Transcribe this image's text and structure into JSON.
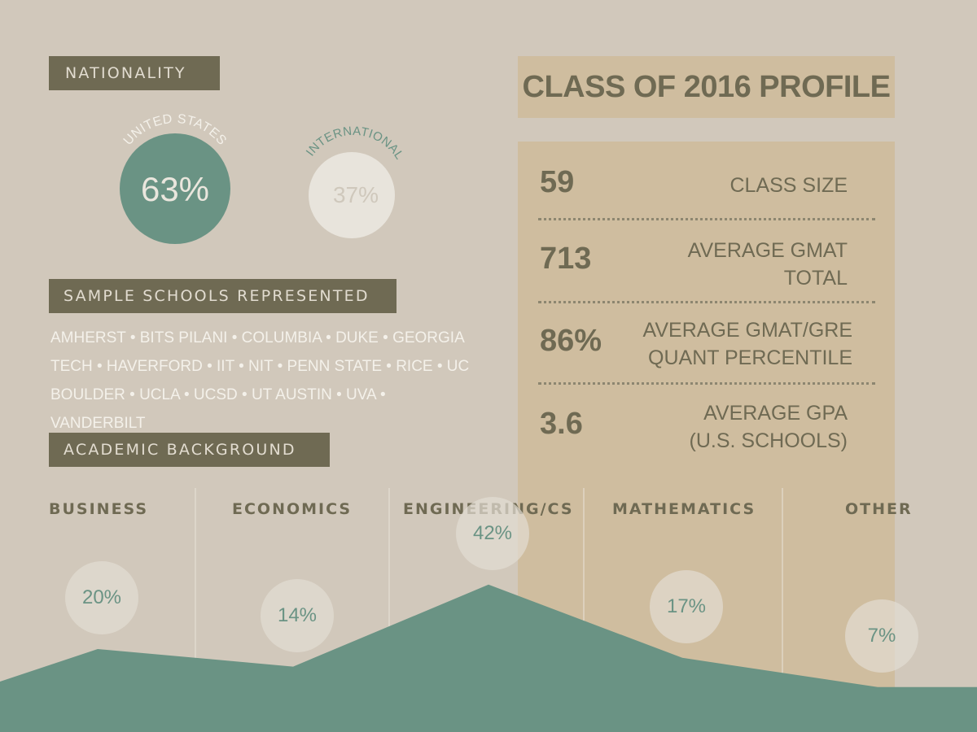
{
  "headers": {
    "nationality": "NATIONALITY",
    "schools": "SAMPLE SCHOOLS REPRESENTED",
    "academic": "ACADEMIC BACKGROUND"
  },
  "nationality": {
    "us": {
      "label": "UNITED STATES",
      "value": "63%"
    },
    "intl": {
      "label": "INTERNATIONAL",
      "value": "37%"
    }
  },
  "schools_text": "AMHERST • BITS PILANI • COLUMBIA • DUKE • GEORGIA TECH • HAVERFORD • IIT • NIT • PENN STATE • RICE • UC BOULDER • UCLA • UCSD • UT AUSTIN • UVA • VANDERBILT",
  "profile": {
    "title": "CLASS OF 2016 PROFILE",
    "stats": [
      {
        "value": "59",
        "label": "CLASS SIZE"
      },
      {
        "value": "713",
        "label": "AVERAGE GMAT\nTOTAL"
      },
      {
        "value": "86%",
        "label": "AVERAGE GMAT/GRE\nQUANT PERCENTILE"
      },
      {
        "value": "3.6",
        "label": "AVERAGE GPA\n(U.S. SCHOOLS)"
      }
    ]
  },
  "academic_background": [
    {
      "category": "BUSINESS",
      "percent": 20,
      "label": "20%"
    },
    {
      "category": "ECONOMICS",
      "percent": 14,
      "label": "14%"
    },
    {
      "category": "ENGINEERING/CS",
      "percent": 42,
      "label": "42%"
    },
    {
      "category": "MATHEMATICS",
      "percent": 17,
      "label": "17%"
    },
    {
      "category": "OTHER",
      "percent": 7,
      "label": "7%"
    }
  ],
  "colors": {
    "background": "#d1c8bb",
    "header_box": "#6f6a53",
    "teal": "#6a9384",
    "tan_panel": "#cfbd9f",
    "light_circle": "#e8e4dc"
  }
}
